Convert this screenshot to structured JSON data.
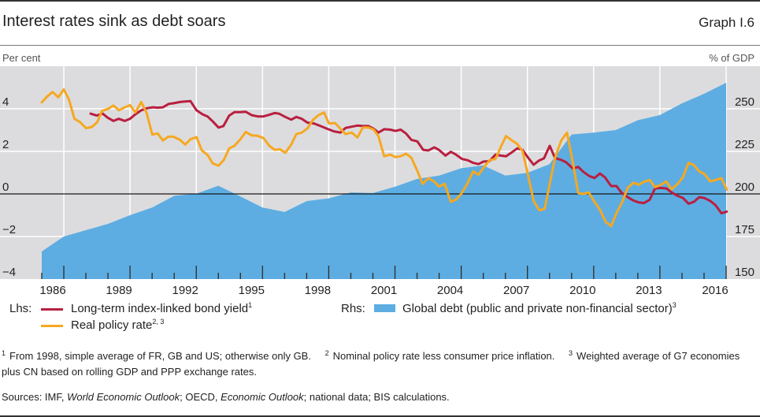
{
  "header": {
    "title": "Interest rates sink as debt soars",
    "graph_label": "Graph I.6"
  },
  "units": {
    "left": "Per cent",
    "right": "% of GDP"
  },
  "legend": {
    "lhs_label": "Lhs:",
    "rhs_label": "Rhs:",
    "items": [
      {
        "label": "Long-term index-linked bond yield",
        "footnote": "1",
        "color": "#B91F3F"
      },
      {
        "label": "Real policy rate",
        "footnote": "2, 3",
        "color": "#F6A821"
      },
      {
        "label": "Global debt (public and private non-financial sector)",
        "footnote": "3",
        "color": "#5DADE2"
      }
    ]
  },
  "footnotes": [
    {
      "mark": "1",
      "text": "From 1998, simple average of FR, GB and US; otherwise only GB."
    },
    {
      "mark": "2",
      "text": "Nominal policy rate less consumer price inflation."
    },
    {
      "mark": "3",
      "text": "Weighted average of G7 economies plus CN based on rolling GDP and PPP exchange rates."
    }
  ],
  "sources": [
    "Sources: IMF, ",
    "World Economic Outlook",
    "; OECD, ",
    "Economic Outlook",
    "; national data; BIS calculations."
  ],
  "chart_data": {
    "type": "line",
    "title": "Interest rates sink as debt soars",
    "grid": true,
    "legend_position": "bottom",
    "colors": {
      "plot_background": "#DCDCDE",
      "gridline": "#FFFFFF",
      "zero_line": "#1A1A1A"
    },
    "x_axis": {
      "label": "",
      "range": [
        1986,
        2017
      ],
      "tick_years": [
        1986,
        1989,
        1992,
        1995,
        1998,
        2001,
        2004,
        2007,
        2010,
        2013,
        2016
      ],
      "tick_labels": [
        "1986",
        "1989",
        "1992",
        "1995",
        "1998",
        "2001",
        "2004",
        "2007",
        "2010",
        "2013",
        "2016"
      ]
    },
    "y_left": {
      "label": "Per cent",
      "range": [
        -4,
        6
      ],
      "ticks": [
        -4,
        -2,
        0,
        2,
        4
      ],
      "tick_labels": [
        "−4",
        "−2",
        "0",
        "2",
        "4"
      ]
    },
    "y_right": {
      "label": "% of GDP",
      "range": [
        150,
        275
      ],
      "ticks": [
        150,
        175,
        200,
        225,
        250
      ],
      "tick_labels": [
        "150",
        "175",
        "200",
        "225",
        "250"
      ]
    },
    "series": [
      {
        "name": "Global debt (public and private non-financial sector)",
        "axis": "right",
        "kind": "area",
        "color": "#5DADE2",
        "x": [
          1986,
          1987,
          1988,
          1989,
          1990,
          1991,
          1992,
          1993,
          1994,
          1995,
          1996,
          1997,
          1998,
          1999,
          2000,
          2001,
          2002,
          2003,
          2004,
          2005,
          2006,
          2007,
          2008,
          2009,
          2010,
          2011,
          2012,
          2013,
          2014,
          2015,
          2016,
          2017
        ],
        "values": [
          166.2,
          175.0,
          178.7,
          182.4,
          187.5,
          192.0,
          198.9,
          200.1,
          204.8,
          198.5,
          192.0,
          189.4,
          195.8,
          197.4,
          200.9,
          200.5,
          204.2,
          208.8,
          210.8,
          215.1,
          216.7,
          210.8,
          212.4,
          217.5,
          234.9,
          236.0,
          237.5,
          243.3,
          246.3,
          253.2,
          258.8,
          265.3
        ]
      },
      {
        "name": "Long-term index-linked bond yield",
        "axis": "left",
        "kind": "line",
        "color": "#B91F3F",
        "points": [
          [
            1988.21,
            3.77
          ],
          [
            1988.49,
            3.68
          ],
          [
            1988.75,
            3.78
          ],
          [
            1988.99,
            3.58
          ],
          [
            1989.25,
            3.43
          ],
          [
            1989.49,
            3.53
          ],
          [
            1989.76,
            3.43
          ],
          [
            1990.0,
            3.53
          ],
          [
            1990.24,
            3.74
          ],
          [
            1990.51,
            3.93
          ],
          [
            1990.78,
            4.03
          ],
          [
            1991.04,
            4.07
          ],
          [
            1991.25,
            4.05
          ],
          [
            1991.49,
            4.07
          ],
          [
            1991.75,
            4.23
          ],
          [
            1991.96,
            4.26
          ],
          [
            1992.26,
            4.32
          ],
          [
            1992.5,
            4.34
          ],
          [
            1992.74,
            4.36
          ],
          [
            1993.01,
            3.93
          ],
          [
            1993.28,
            3.74
          ],
          [
            1993.51,
            3.64
          ],
          [
            1993.75,
            3.4
          ],
          [
            1994.01,
            3.12
          ],
          [
            1994.23,
            3.19
          ],
          [
            1994.49,
            3.68
          ],
          [
            1994.73,
            3.84
          ],
          [
            1995.0,
            3.84
          ],
          [
            1995.24,
            3.86
          ],
          [
            1995.51,
            3.7
          ],
          [
            1995.78,
            3.64
          ],
          [
            1996.04,
            3.64
          ],
          [
            1996.31,
            3.72
          ],
          [
            1996.55,
            3.8
          ],
          [
            1996.75,
            3.77
          ],
          [
            1997.03,
            3.62
          ],
          [
            1997.3,
            3.49
          ],
          [
            1997.53,
            3.62
          ],
          [
            1997.78,
            3.53
          ],
          [
            1998.04,
            3.35
          ],
          [
            1998.33,
            3.31
          ],
          [
            1998.63,
            3.19
          ],
          [
            1998.93,
            3.06
          ],
          [
            1999.23,
            2.94
          ],
          [
            1999.53,
            2.88
          ],
          [
            1999.76,
            3.1
          ],
          [
            2000.04,
            3.16
          ],
          [
            2000.3,
            3.21
          ],
          [
            2000.54,
            3.19
          ],
          [
            2000.8,
            3.19
          ],
          [
            2001.04,
            3.06
          ],
          [
            2001.25,
            2.88
          ],
          [
            2001.51,
            3.04
          ],
          [
            2001.79,
            3.02
          ],
          [
            2002.02,
            2.96
          ],
          [
            2002.26,
            3.02
          ],
          [
            2002.5,
            2.84
          ],
          [
            2002.74,
            2.54
          ],
          [
            2003.01,
            2.47
          ],
          [
            2003.28,
            2.07
          ],
          [
            2003.51,
            2.04
          ],
          [
            2003.78,
            2.19
          ],
          [
            2003.99,
            2.07
          ],
          [
            2004.29,
            1.8
          ],
          [
            2004.53,
            1.98
          ],
          [
            2004.76,
            1.85
          ],
          [
            2005.04,
            1.64
          ],
          [
            2005.3,
            1.58
          ],
          [
            2005.54,
            1.46
          ],
          [
            2005.78,
            1.4
          ],
          [
            2006.01,
            1.52
          ],
          [
            2006.28,
            1.54
          ],
          [
            2006.55,
            1.85
          ],
          [
            2006.79,
            1.8
          ],
          [
            2007.03,
            1.77
          ],
          [
            2007.26,
            1.93
          ],
          [
            2007.54,
            2.14
          ],
          [
            2007.78,
            2.07
          ],
          [
            2008.01,
            1.73
          ],
          [
            2008.28,
            1.37
          ],
          [
            2008.51,
            1.56
          ],
          [
            2008.75,
            1.67
          ],
          [
            2009.01,
            2.26
          ],
          [
            2009.25,
            1.68
          ],
          [
            2009.53,
            1.6
          ],
          [
            2009.76,
            1.48
          ],
          [
            2010.06,
            1.19
          ],
          [
            2010.3,
            1.27
          ],
          [
            2010.54,
            1.03
          ],
          [
            2010.8,
            0.84
          ],
          [
            2011.04,
            0.75
          ],
          [
            2011.28,
            0.96
          ],
          [
            2011.51,
            0.78
          ],
          [
            2011.79,
            0.37
          ],
          [
            2012.03,
            0.37
          ],
          [
            2012.26,
            0.06
          ],
          [
            2012.54,
            -0.15
          ],
          [
            2012.78,
            -0.3
          ],
          [
            2013.04,
            -0.4
          ],
          [
            2013.28,
            -0.43
          ],
          [
            2013.54,
            -0.27
          ],
          [
            2013.78,
            0.26
          ],
          [
            2014.01,
            0.28
          ],
          [
            2014.29,
            0.26
          ],
          [
            2014.53,
            0.07
          ],
          [
            2014.8,
            -0.09
          ],
          [
            2015.04,
            -0.19
          ],
          [
            2015.3,
            -0.46
          ],
          [
            2015.54,
            -0.37
          ],
          [
            2015.78,
            -0.15
          ],
          [
            2016.01,
            -0.19
          ],
          [
            2016.28,
            -0.33
          ],
          [
            2016.51,
            -0.52
          ],
          [
            2016.79,
            -0.91
          ],
          [
            2017.03,
            -0.83
          ]
        ]
      },
      {
        "name": "Real policy rate",
        "axis": "left",
        "kind": "line",
        "color": "#F6A821",
        "points": [
          [
            1986.0,
            4.3
          ],
          [
            1986.25,
            4.58
          ],
          [
            1986.49,
            4.79
          ],
          [
            1986.75,
            4.54
          ],
          [
            1987.0,
            4.91
          ],
          [
            1987.23,
            4.44
          ],
          [
            1987.48,
            3.53
          ],
          [
            1987.74,
            3.37
          ],
          [
            1988.01,
            3.09
          ],
          [
            1988.28,
            3.15
          ],
          [
            1988.51,
            3.37
          ],
          [
            1988.73,
            3.9
          ],
          [
            1988.99,
            3.99
          ],
          [
            1989.25,
            4.15
          ],
          [
            1989.5,
            3.93
          ],
          [
            1989.76,
            4.07
          ],
          [
            1990.0,
            4.17
          ],
          [
            1990.24,
            3.83
          ],
          [
            1990.51,
            4.32
          ],
          [
            1990.75,
            3.8
          ],
          [
            1991.01,
            2.79
          ],
          [
            1991.25,
            2.84
          ],
          [
            1991.49,
            2.51
          ],
          [
            1991.73,
            2.69
          ],
          [
            1991.96,
            2.69
          ],
          [
            1992.26,
            2.54
          ],
          [
            1992.5,
            2.32
          ],
          [
            1992.74,
            2.57
          ],
          [
            1993.01,
            2.67
          ],
          [
            1993.25,
            2.05
          ],
          [
            1993.51,
            1.83
          ],
          [
            1993.75,
            1.43
          ],
          [
            1994.01,
            1.33
          ],
          [
            1994.25,
            1.6
          ],
          [
            1994.49,
            2.14
          ],
          [
            1994.73,
            2.26
          ],
          [
            1995.0,
            2.57
          ],
          [
            1995.24,
            2.91
          ],
          [
            1995.51,
            2.75
          ],
          [
            1995.78,
            2.73
          ],
          [
            1996.04,
            2.63
          ],
          [
            1996.31,
            2.26
          ],
          [
            1996.55,
            2.07
          ],
          [
            1996.79,
            2.1
          ],
          [
            1997.03,
            1.93
          ],
          [
            1997.3,
            2.32
          ],
          [
            1997.53,
            2.81
          ],
          [
            1997.78,
            2.88
          ],
          [
            1998.04,
            3.08
          ],
          [
            1998.28,
            3.47
          ],
          [
            1998.51,
            3.68
          ],
          [
            1998.78,
            3.83
          ],
          [
            1999.01,
            3.31
          ],
          [
            1999.29,
            3.33
          ],
          [
            1999.53,
            3.06
          ],
          [
            1999.76,
            2.81
          ],
          [
            2000.04,
            2.88
          ],
          [
            2000.3,
            2.65
          ],
          [
            2000.54,
            3.12
          ],
          [
            2000.8,
            3.12
          ],
          [
            2001.04,
            3.02
          ],
          [
            2001.25,
            2.72
          ],
          [
            2001.51,
            1.77
          ],
          [
            2001.79,
            1.85
          ],
          [
            2002.02,
            1.73
          ],
          [
            2002.26,
            1.77
          ],
          [
            2002.5,
            1.89
          ],
          [
            2002.74,
            1.7
          ],
          [
            2003.01,
            1.09
          ],
          [
            2003.25,
            0.47
          ],
          [
            2003.51,
            0.74
          ],
          [
            2003.78,
            0.58
          ],
          [
            2003.99,
            0.35
          ],
          [
            2004.25,
            0.47
          ],
          [
            2004.53,
            -0.37
          ],
          [
            2004.76,
            -0.27
          ],
          [
            2005.0,
            0.0
          ],
          [
            2005.28,
            0.49
          ],
          [
            2005.54,
            1.06
          ],
          [
            2005.78,
            0.9
          ],
          [
            2006.01,
            1.23
          ],
          [
            2006.28,
            1.58
          ],
          [
            2006.55,
            1.64
          ],
          [
            2006.79,
            2.2
          ],
          [
            2007.03,
            2.72
          ],
          [
            2007.3,
            2.51
          ],
          [
            2007.54,
            2.35
          ],
          [
            2007.78,
            2.01
          ],
          [
            2008.01,
            0.96
          ],
          [
            2008.28,
            -0.33
          ],
          [
            2008.54,
            -0.77
          ],
          [
            2008.78,
            -0.7
          ],
          [
            2009.01,
            0.47
          ],
          [
            2009.25,
            1.7
          ],
          [
            2009.53,
            2.51
          ],
          [
            2009.79,
            2.88
          ],
          [
            2010.06,
            1.46
          ],
          [
            2010.3,
            0.04
          ],
          [
            2010.54,
            0.0
          ],
          [
            2010.78,
            0.07
          ],
          [
            2011.01,
            -0.33
          ],
          [
            2011.28,
            -0.74
          ],
          [
            2011.55,
            -1.32
          ],
          [
            2011.79,
            -1.51
          ],
          [
            2012.03,
            -0.91
          ],
          [
            2012.3,
            -0.37
          ],
          [
            2012.54,
            0.28
          ],
          [
            2012.8,
            0.53
          ],
          [
            2013.04,
            0.43
          ],
          [
            2013.28,
            0.57
          ],
          [
            2013.54,
            0.65
          ],
          [
            2013.78,
            0.32
          ],
          [
            2014.01,
            0.41
          ],
          [
            2014.29,
            0.59
          ],
          [
            2014.53,
            0.22
          ],
          [
            2014.8,
            0.47
          ],
          [
            2015.04,
            0.78
          ],
          [
            2015.3,
            1.46
          ],
          [
            2015.54,
            1.36
          ],
          [
            2015.78,
            1.06
          ],
          [
            2016.01,
            0.94
          ],
          [
            2016.28,
            0.59
          ],
          [
            2016.51,
            0.65
          ],
          [
            2016.79,
            0.74
          ],
          [
            2017.03,
            0.2
          ]
        ]
      }
    ]
  }
}
